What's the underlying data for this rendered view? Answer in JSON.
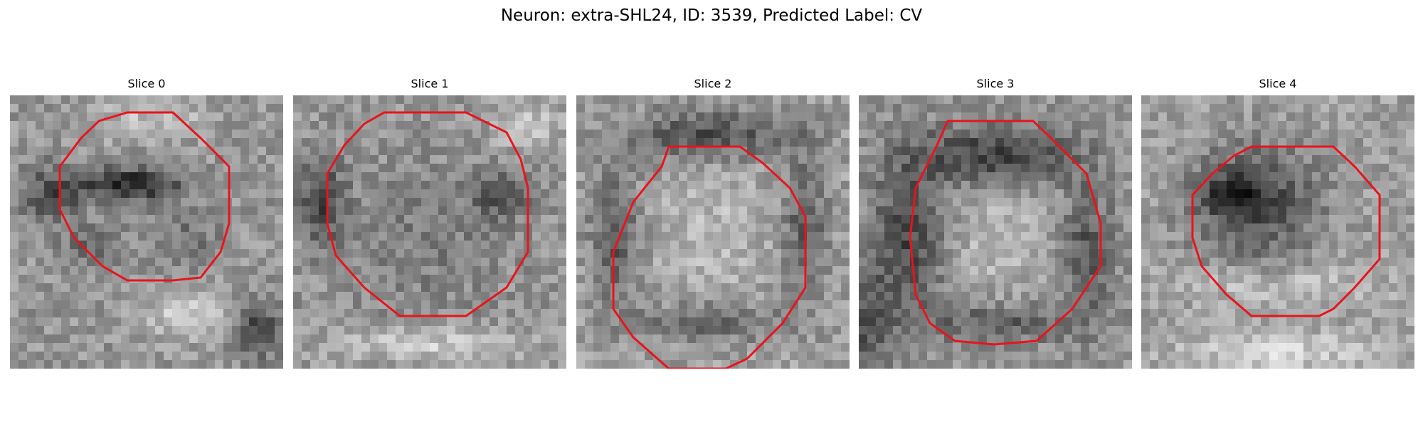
{
  "figure": {
    "title": "Neuron: extra-SHL24, ID: 3539, Predicted Label: CV"
  },
  "colors": {
    "contour": "#e8141c",
    "background": "#ffffff"
  },
  "panels": [
    {
      "title": "Slice 0"
    },
    {
      "title": "Slice 1"
    },
    {
      "title": "Slice 2"
    },
    {
      "title": "Slice 3"
    },
    {
      "title": "Slice 4"
    }
  ]
}
